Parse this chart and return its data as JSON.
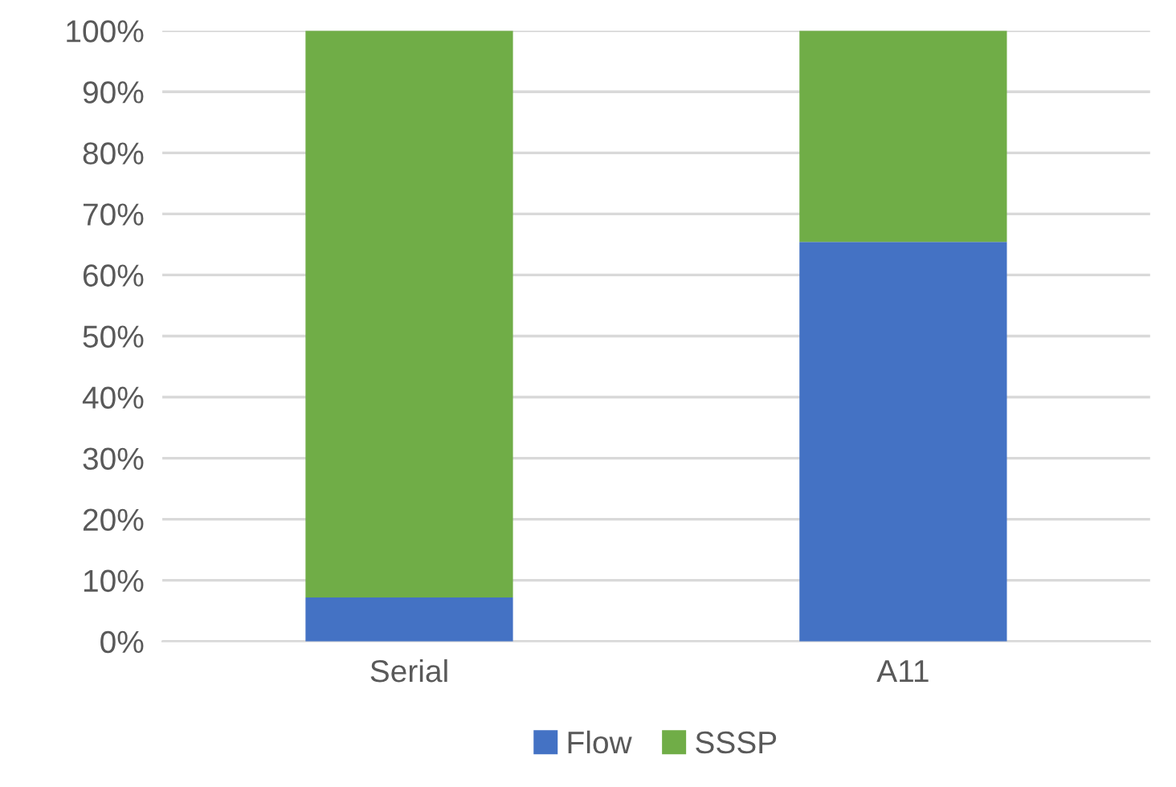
{
  "chart_data": {
    "type": "bar",
    "stacked": true,
    "categories": [
      "Serial",
      "A11"
    ],
    "series": [
      {
        "name": "Flow",
        "color": "#4472c4",
        "values": [
          7.2,
          65.4
        ]
      },
      {
        "name": "SSSP",
        "color": "#70ad47",
        "values": [
          92.8,
          34.6
        ]
      }
    ],
    "ylim": [
      0,
      100
    ],
    "yticks": [
      {
        "value": 0,
        "label": "0%"
      },
      {
        "value": 10,
        "label": "10%"
      },
      {
        "value": 20,
        "label": "20%"
      },
      {
        "value": 30,
        "label": "30%"
      },
      {
        "value": 40,
        "label": "40%"
      },
      {
        "value": 50,
        "label": "50%"
      },
      {
        "value": 60,
        "label": "60%"
      },
      {
        "value": 70,
        "label": "70%"
      },
      {
        "value": 80,
        "label": "80%"
      },
      {
        "value": 90,
        "label": "90%"
      },
      {
        "value": 100,
        "label": "100%"
      }
    ],
    "grid": "y",
    "legend": "bottom"
  }
}
